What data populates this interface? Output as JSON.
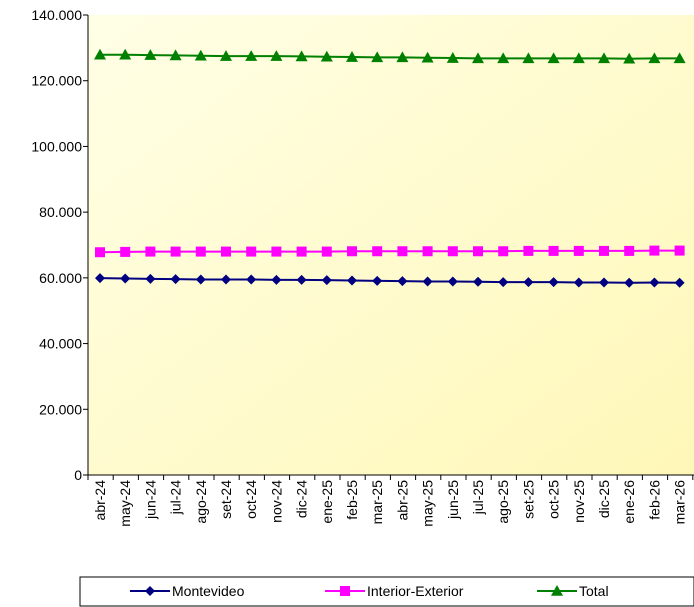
{
  "chart_data": {
    "type": "line",
    "title": "",
    "xlabel": "",
    "ylabel": "",
    "ylim": [
      0,
      140000
    ],
    "y_ticks": [
      0,
      20000,
      40000,
      60000,
      80000,
      100000,
      120000,
      140000
    ],
    "y_tick_labels": [
      "0",
      "20.000",
      "40.000",
      "60.000",
      "80.000",
      "100.000",
      "120.000",
      "140.000"
    ],
    "categories": [
      "abr-24",
      "may-24",
      "jun-24",
      "jul-24",
      "ago-24",
      "set-24",
      "oct-24",
      "nov-24",
      "dic-24",
      "ene-25",
      "feb-25",
      "mar-25",
      "abr-25",
      "may-25",
      "jun-25",
      "jul-25",
      "ago-25",
      "set-25",
      "oct-25",
      "nov-25",
      "dic-25",
      "ene-26",
      "feb-26",
      "mar-26"
    ],
    "grid": false,
    "legend_position": "bottom",
    "series": [
      {
        "name": "Montevideo",
        "color": "#000080",
        "marker": "diamond",
        "values": [
          59900,
          59800,
          59700,
          59600,
          59500,
          59500,
          59500,
          59400,
          59400,
          59300,
          59200,
          59100,
          59000,
          58900,
          58900,
          58800,
          58700,
          58700,
          58700,
          58600,
          58600,
          58500,
          58600,
          58500
        ]
      },
      {
        "name": "Interior-Exterior",
        "color": "#ff00ff",
        "marker": "square",
        "values": [
          67800,
          67900,
          68000,
          68000,
          68000,
          68000,
          68000,
          68000,
          68000,
          68000,
          68100,
          68100,
          68100,
          68100,
          68100,
          68100,
          68100,
          68200,
          68200,
          68200,
          68200,
          68200,
          68300,
          68300
        ]
      },
      {
        "name": "Total",
        "color": "#008000",
        "marker": "triangle",
        "values": [
          127900,
          127900,
          127800,
          127700,
          127600,
          127500,
          127500,
          127500,
          127400,
          127300,
          127200,
          127100,
          127100,
          127000,
          126900,
          126800,
          126800,
          126800,
          126800,
          126800,
          126800,
          126700,
          126800,
          126800
        ]
      }
    ]
  }
}
